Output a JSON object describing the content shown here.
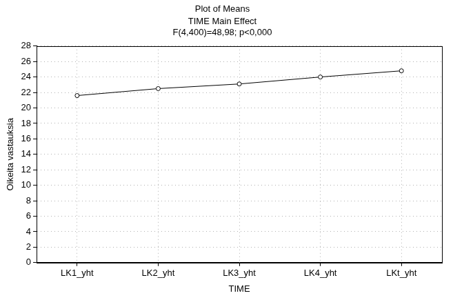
{
  "chart_data": {
    "type": "line",
    "title": "Plot of Means",
    "subtitle": [
      "TIME Main Effect",
      "F(4,400)=48,98; p<0,000"
    ],
    "x_label": "TIME",
    "y_label": "Oikeita vastauksia",
    "categories": [
      "LK1_yht",
      "LK2_yht",
      "LK3_yht",
      "LK4_yht",
      "LKt_yht"
    ],
    "values": [
      21.6,
      22.5,
      23.1,
      24.0,
      24.8
    ],
    "color": "#000000",
    "marker": "circle",
    "ylim": [
      0,
      28
    ],
    "yticks": [
      0,
      2,
      4,
      6,
      8,
      10,
      12,
      14,
      16,
      18,
      20,
      22,
      24,
      26,
      28
    ],
    "grid": true
  }
}
